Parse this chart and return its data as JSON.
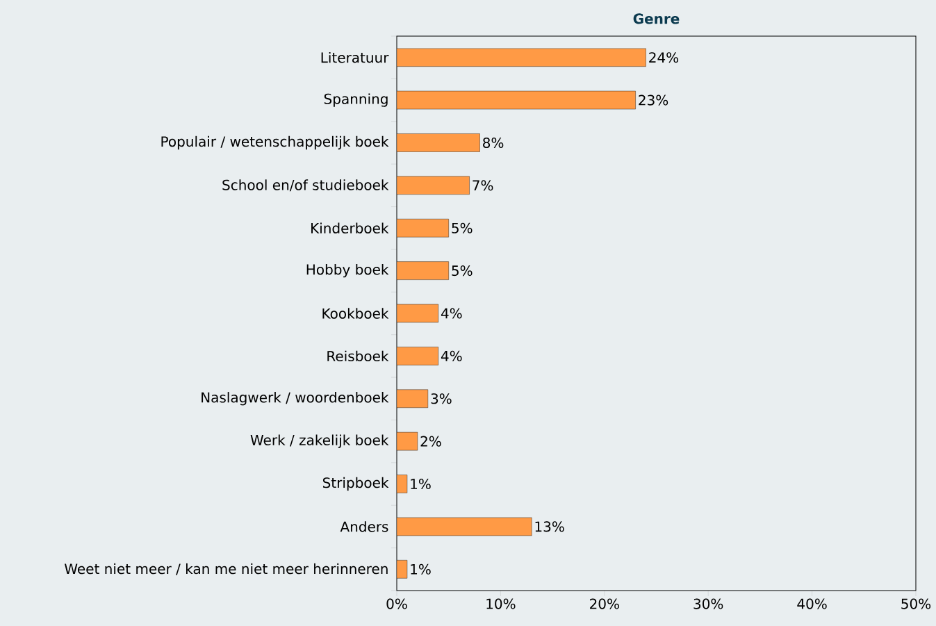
{
  "chart_data": {
    "type": "bar",
    "orientation": "horizontal",
    "title": "Genre",
    "categories": [
      "Literatuur",
      "Spanning",
      "Populair / wetenschappelijk boek",
      "School en/of studieboek",
      "Kinderboek",
      "Hobby boek",
      "Kookboek",
      "Reisboek",
      "Naslagwerk / woordenboek",
      "Werk / zakelijk boek",
      "Stripboek",
      "Anders",
      "Weet niet meer / kan me niet meer herinneren"
    ],
    "values": [
      24,
      23,
      8,
      7,
      5,
      5,
      4,
      4,
      3,
      2,
      1,
      13,
      1
    ],
    "value_labels": [
      "24%",
      "23%",
      "8%",
      "7%",
      "5%",
      "5%",
      "4%",
      "4%",
      "3%",
      "2%",
      "1%",
      "13%",
      "1%"
    ],
    "color": "#ff9a45",
    "xlim": [
      0,
      50
    ],
    "xticks": [
      {
        "value": 0,
        "label": "0%"
      },
      {
        "value": 10,
        "label": "10%"
      },
      {
        "value": 20,
        "label": "20%"
      },
      {
        "value": 30,
        "label": "30%"
      },
      {
        "value": 40,
        "label": "40%"
      },
      {
        "value": 50,
        "label": "50%"
      }
    ]
  }
}
